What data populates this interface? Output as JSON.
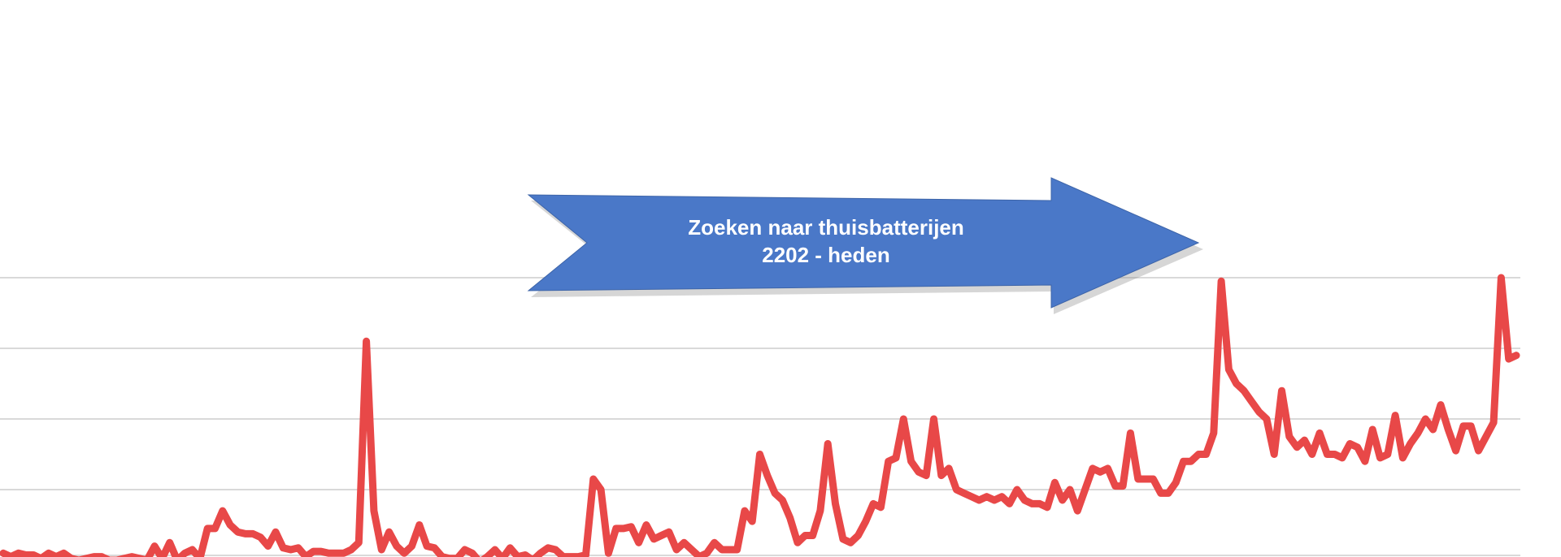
{
  "annotation": {
    "line1": "Zoeken naar thuisbatterijen",
    "line2": "2202 - heden",
    "fill_color": "#4a78c8",
    "text_color": "#ffffff",
    "shape": "arrow-right"
  },
  "chart_data": {
    "type": "line",
    "title": "",
    "xlabel": "",
    "ylabel": "",
    "ylim": [
      0,
      100
    ],
    "grid": true,
    "gridlines": [
      20,
      40,
      60,
      80
    ],
    "series": [
      {
        "color": "#e84848",
        "values": [
          2,
          1,
          2,
          1.5,
          1.5,
          0.5,
          2,
          1,
          2,
          0.5,
          0,
          0.5,
          1,
          1,
          0,
          0,
          0.5,
          1,
          0.5,
          0,
          4,
          0.5,
          5,
          0,
          2,
          3,
          0.5,
          9,
          9,
          14,
          10,
          8,
          7.5,
          7.5,
          6.5,
          4,
          8,
          3.5,
          3,
          3.5,
          1,
          2.5,
          2.5,
          2,
          2,
          2,
          3,
          5,
          62,
          14,
          3,
          8,
          4,
          2,
          4,
          10,
          4,
          3.5,
          1,
          0.5,
          0.5,
          3,
          2,
          -0.5,
          1,
          3,
          0.5,
          3.5,
          1,
          1.5,
          0,
          2,
          3.5,
          3,
          1,
          1,
          1,
          1.5,
          23,
          20,
          2,
          9,
          9,
          9.5,
          5,
          10,
          6,
          7,
          8,
          3,
          5,
          3,
          1,
          2,
          5,
          3,
          3,
          3,
          14,
          11,
          30,
          24,
          19,
          17,
          12,
          5,
          7,
          7,
          14,
          33,
          16,
          6,
          5,
          7,
          11,
          16,
          15,
          28,
          29,
          40,
          28,
          25,
          24,
          40,
          24,
          26,
          20,
          19,
          18,
          17,
          18,
          17,
          18,
          16,
          20,
          17,
          16,
          16,
          15,
          22,
          17,
          20,
          14,
          20,
          26,
          25,
          26,
          21,
          21,
          36,
          23,
          23,
          23,
          19,
          19,
          22,
          28,
          28,
          30,
          30,
          36,
          79,
          54,
          50,
          48,
          45,
          42,
          40,
          30,
          48,
          35,
          32,
          34,
          30,
          36,
          30,
          30,
          29,
          33,
          32,
          28,
          37,
          29,
          30,
          41,
          29,
          33,
          36,
          40,
          37,
          44,
          37,
          31,
          38,
          38,
          31,
          35,
          39,
          80,
          57,
          58
        ]
      }
    ]
  }
}
